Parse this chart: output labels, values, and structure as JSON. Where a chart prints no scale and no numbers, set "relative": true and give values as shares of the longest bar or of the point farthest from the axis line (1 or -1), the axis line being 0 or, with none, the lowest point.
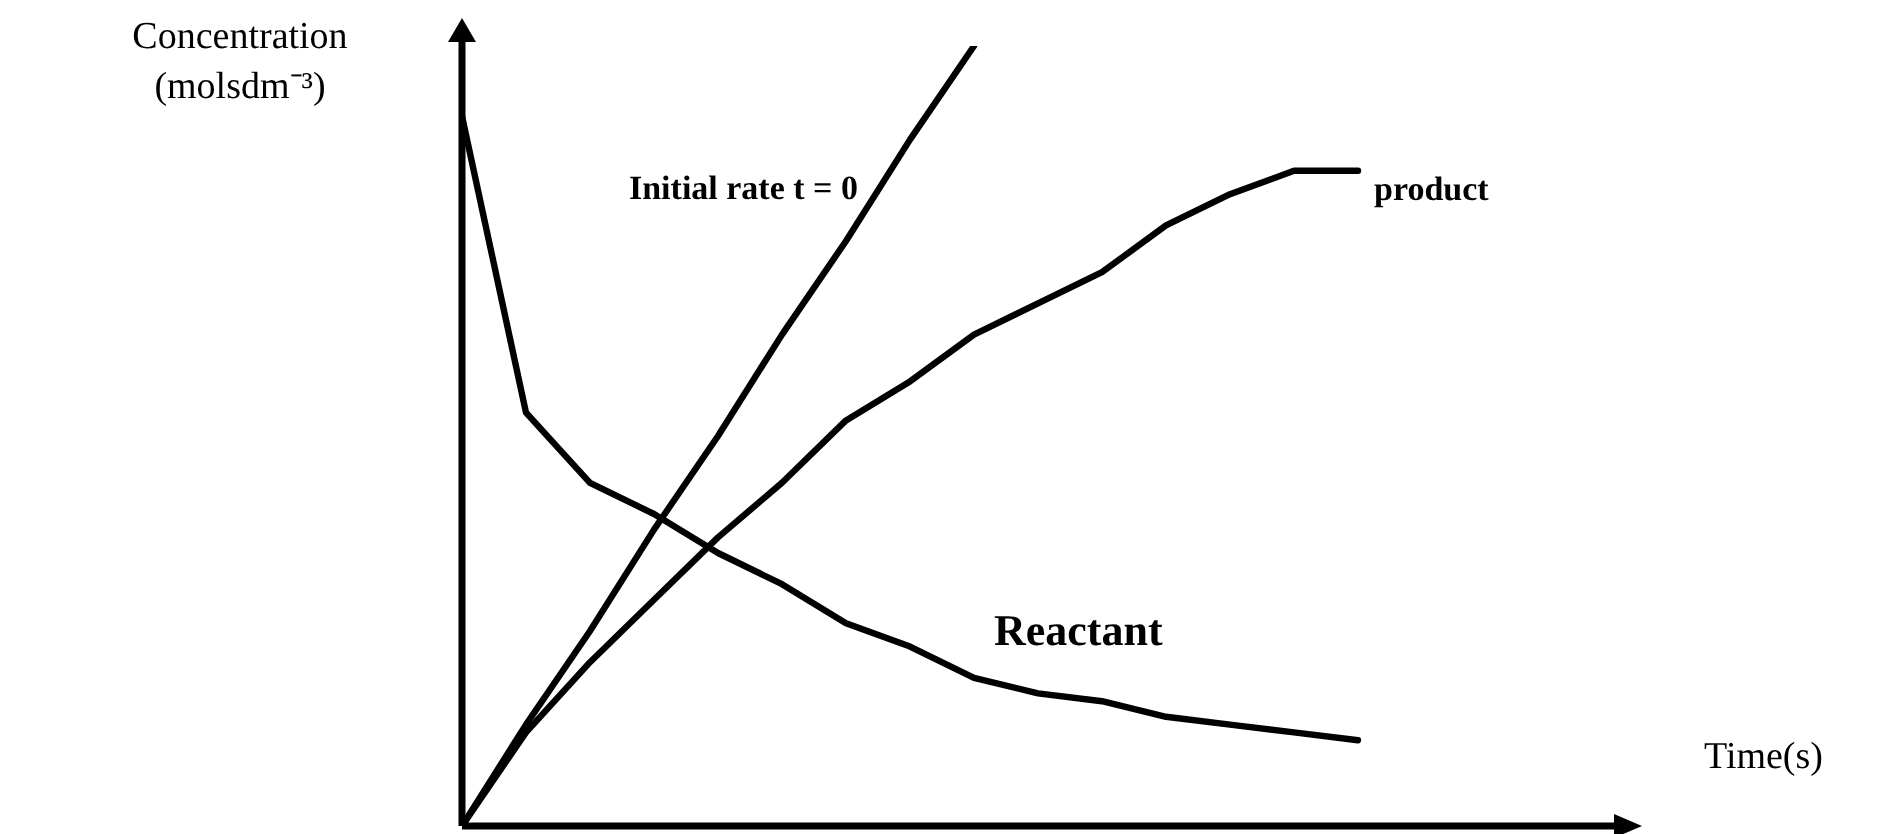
{
  "chart_data": {
    "type": "line",
    "relative": true,
    "xlabel": "Time(s)",
    "ylabel": "Concentration (molsdm⁻³)",
    "categories": [
      null,
      null,
      null,
      null,
      null,
      null,
      null,
      null,
      null,
      null,
      null,
      null,
      null,
      null,
      null,
      null,
      null,
      null,
      null
    ],
    "series": [
      {
        "name": "Initial rate t = 0",
        "color": "#000000",
        "values": [
          0,
          0.13,
          0.25,
          0.38,
          0.5,
          0.63,
          0.75,
          0.88,
          1,
          null,
          null,
          null,
          null,
          null,
          null,
          null,
          null,
          null,
          null
        ]
      },
      {
        "name": "product",
        "color": "#000000",
        "values": [
          0,
          0.12,
          0.21,
          0.29,
          0.37,
          0.44,
          0.52,
          0.57,
          0.63,
          0.67,
          0.71,
          0.77,
          0.81,
          0.84,
          0.84,
          null,
          null,
          null,
          null
        ]
      },
      {
        "name": "Reactant",
        "color": "#000000",
        "values": [
          0.91,
          0.53,
          0.44,
          0.4,
          0.35,
          0.31,
          0.26,
          0.23,
          0.19,
          0.17,
          0.16,
          0.14,
          0.13,
          0.12,
          0.11,
          null,
          null,
          null,
          null
        ]
      }
    ],
    "legend": false,
    "marker": "none",
    "line_style": "solid",
    "tick_labels": false
  }
}
